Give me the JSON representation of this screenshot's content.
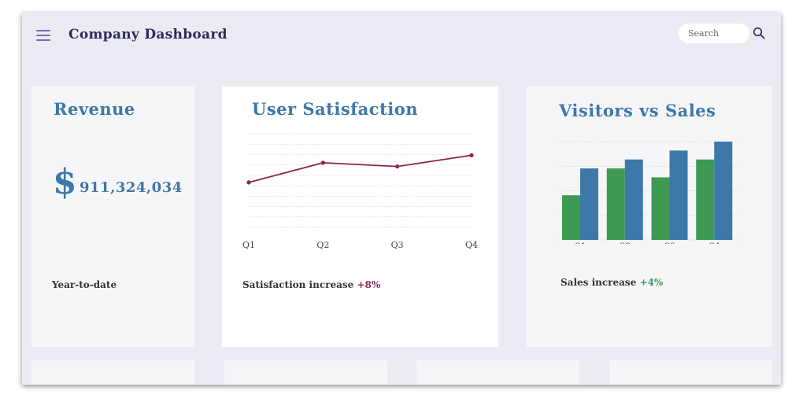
{
  "header": {
    "title": "Company Dashboard",
    "search_placeholder": "Search",
    "menu_icon": "hamburger-menu-icon",
    "search_icon": "magnifier-icon"
  },
  "revenue": {
    "title": "Revenue",
    "currency_symbol": "$",
    "value": "911,324,034",
    "caption": "Year-to-date"
  },
  "satisfaction": {
    "title": "User Satisfaction",
    "caption": "Satisfaction increase",
    "change": "+8%"
  },
  "visitors_sales": {
    "title": "Visitors vs Sales",
    "caption": "Sales increase",
    "change": "+4%"
  },
  "colors": {
    "accent_blue": "#3d78a8",
    "line_purple": "#8a2452",
    "bar_green": "#3e9a52",
    "bar_blue": "#3d78a8",
    "header_text": "#2d2a5e"
  },
  "chart_data": [
    {
      "type": "line",
      "categories": [
        "Q1",
        "Q2",
        "Q3",
        "Q4"
      ],
      "series": [
        {
          "values": [
            48,
            69,
            65,
            77
          ]
        }
      ],
      "ylim": [
        0,
        100
      ],
      "grid": true
    },
    {
      "type": "bar",
      "categories": [
        "Q1",
        "Q2",
        "Q3",
        "Q4"
      ],
      "series": [
        {
          "values": [
            50,
            80,
            70,
            90
          ]
        },
        {
          "values": [
            80,
            90,
            100,
            110
          ]
        }
      ],
      "ylim": [
        0,
        110
      ],
      "grid": true
    }
  ]
}
